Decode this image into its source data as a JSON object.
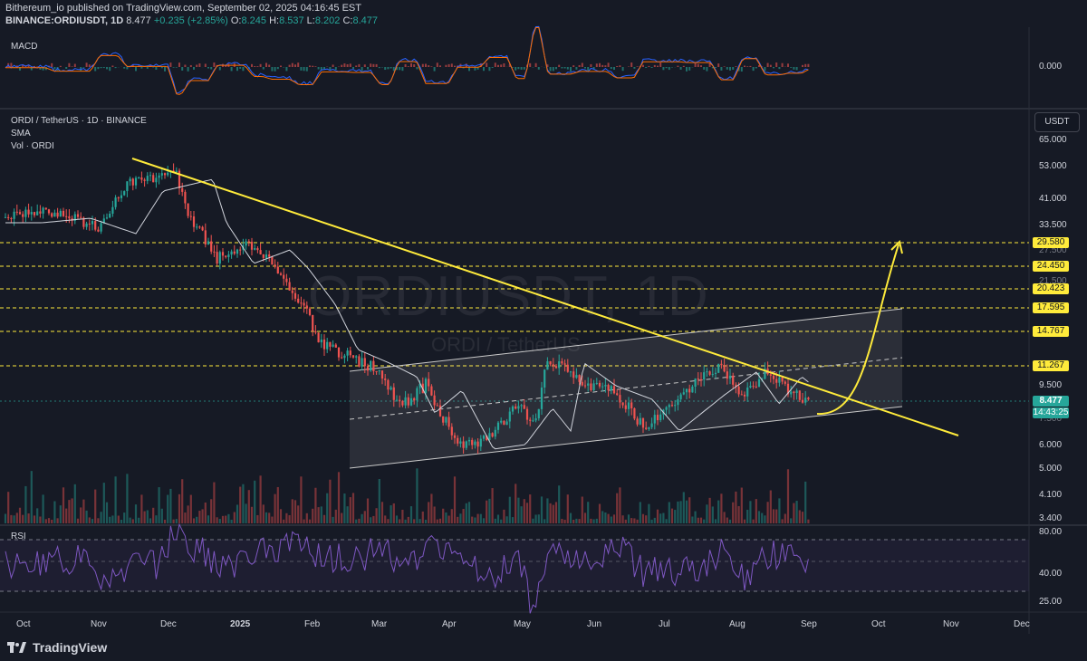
{
  "header": {
    "author_line": "Bithereum_io published on TradingView.com, September 02, 2025 04:16:45 EST",
    "symbol": "BINANCE:ORDIUSDT, 1D",
    "last": "8.477",
    "change": "+0.235 (+2.85%)",
    "o_label": "O:",
    "o": "8.245",
    "h_label": "H:",
    "h": "8.537",
    "l_label": "L:",
    "l": "8.202",
    "c_label": "C:",
    "c": "8.477"
  },
  "panes": {
    "macd_label": "MACD",
    "macd_zero": "0.000",
    "main_title": "ORDI / TetherUS · 1D · BINANCE",
    "sma_label": "SMA",
    "vol_label": "Vol · ORDI",
    "rsi_label": "RSI",
    "currency_button": "USDT"
  },
  "watermark": {
    "big": "ORDIUSDT, 1D",
    "small": "ORDI / TetherUS"
  },
  "price_axis": [
    "65.000",
    "53.000",
    "41.000",
    "33.500",
    "27.500",
    "21.500",
    "9.500",
    "7.500",
    "6.000",
    "5.000",
    "4.100",
    "3.400"
  ],
  "rsi_axis": [
    "80.00",
    "40.00",
    "25.00"
  ],
  "levels": [
    "29.580",
    "24.450",
    "20.423",
    "17.595",
    "14.767",
    "11.267"
  ],
  "current_price": {
    "value": "8.477",
    "countdown": "14:43:25"
  },
  "months": [
    "Oct",
    "Nov",
    "Dec",
    "2025",
    "Feb",
    "Mar",
    "Apr",
    "May",
    "Jun",
    "Jul",
    "Aug",
    "Sep",
    "Oct",
    "Nov",
    "Dec"
  ],
  "footer": {
    "brand": "TradingView"
  },
  "colors": {
    "up": "#26a69a",
    "down": "#ef5350",
    "trendline": "#ffeb3b",
    "rsi": "#7e57c2",
    "macd": "#2962ff",
    "signal": "#ff6d00"
  },
  "chart_data": {
    "type": "candlestick",
    "price_scale": "log",
    "levels": [
      29.58,
      24.45,
      20.423,
      17.595,
      14.767,
      11.267
    ],
    "last_close": 8.477,
    "ohlc_last": {
      "open": 8.245,
      "high": 8.537,
      "low": 8.202,
      "close": 8.477
    },
    "rsi_bands": [
      70,
      50,
      30
    ]
  }
}
